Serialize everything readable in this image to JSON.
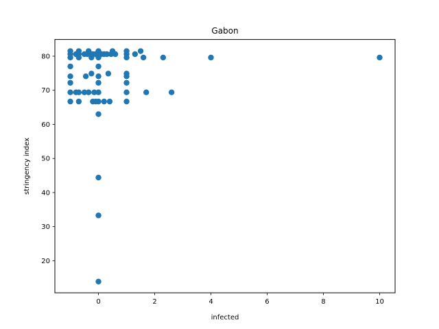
{
  "chart_data": {
    "type": "scatter",
    "title": "Gabon",
    "xlabel": "infected",
    "ylabel": "stringency index",
    "xlim": [
      -1.55,
      10.55
    ],
    "ylim": [
      10.6,
      84.9
    ],
    "xticks": [
      0,
      2,
      4,
      6,
      8,
      10
    ],
    "yticks": [
      20,
      30,
      40,
      50,
      60,
      70,
      80
    ],
    "grid": false,
    "color": "#1f77b4",
    "points": [
      [
        -1,
        81.5
      ],
      [
        -1,
        80.6
      ],
      [
        -1,
        79.6
      ],
      [
        -1,
        77.0
      ],
      [
        -1,
        74.1
      ],
      [
        -1,
        72.2
      ],
      [
        -1,
        69.4
      ],
      [
        -1,
        66.7
      ],
      [
        -0.8,
        80.6
      ],
      [
        -0.8,
        69.4
      ],
      [
        -0.7,
        81.5
      ],
      [
        -0.7,
        80.6
      ],
      [
        -0.7,
        79.6
      ],
      [
        -0.7,
        69.4
      ],
      [
        -0.7,
        66.7
      ],
      [
        -0.5,
        80.6
      ],
      [
        -0.5,
        69.4
      ],
      [
        -0.45,
        74.1
      ],
      [
        -0.4,
        80.6
      ],
      [
        -0.35,
        81.5
      ],
      [
        -0.35,
        69.4
      ],
      [
        -0.25,
        80.6
      ],
      [
        -0.25,
        79.6
      ],
      [
        -0.25,
        74.9
      ],
      [
        -0.2,
        80.6
      ],
      [
        -0.2,
        66.7
      ],
      [
        -0.15,
        69.4
      ],
      [
        -0.1,
        80.6
      ],
      [
        -0.1,
        66.7
      ],
      [
        0,
        81.5
      ],
      [
        0,
        80.6
      ],
      [
        0,
        79.6
      ],
      [
        0,
        77.0
      ],
      [
        0,
        74.1
      ],
      [
        0,
        72.2
      ],
      [
        0,
        69.4
      ],
      [
        0,
        66.7
      ],
      [
        0,
        63.0
      ],
      [
        0,
        44.4
      ],
      [
        0,
        33.3
      ],
      [
        0,
        13.9
      ],
      [
        0.1,
        80.6
      ],
      [
        0.2,
        80.6
      ],
      [
        0.2,
        66.7
      ],
      [
        0.3,
        80.6
      ],
      [
        0.35,
        74.9
      ],
      [
        0.4,
        66.7
      ],
      [
        0.45,
        80.6
      ],
      [
        0.5,
        81.5
      ],
      [
        0.6,
        80.6
      ],
      [
        1,
        81.5
      ],
      [
        1,
        80.6
      ],
      [
        1,
        79.6
      ],
      [
        1,
        74.9
      ],
      [
        1,
        74.1
      ],
      [
        1,
        72.2
      ],
      [
        1,
        69.4
      ],
      [
        1,
        66.7
      ],
      [
        1.3,
        80.6
      ],
      [
        1.5,
        81.5
      ],
      [
        1.6,
        79.6
      ],
      [
        1.7,
        69.4
      ],
      [
        2.3,
        79.6
      ],
      [
        2.6,
        69.4
      ],
      [
        4,
        79.6
      ],
      [
        10,
        79.6
      ]
    ]
  }
}
